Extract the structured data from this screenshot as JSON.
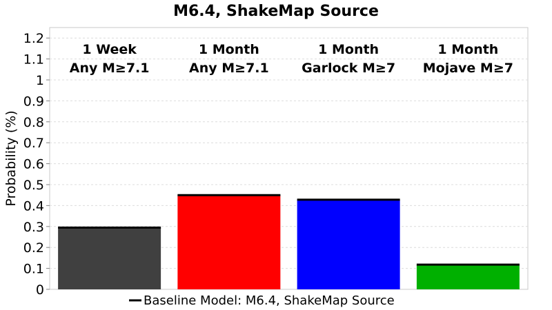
{
  "chart_data": {
    "type": "bar",
    "title": "M6.4, ShakeMap Source",
    "xlabel": "",
    "ylabel": "Probability (%)",
    "ylim": [
      0,
      1.25
    ],
    "yticks": [
      "0",
      "0.1",
      "0.2",
      "0.3",
      "0.4",
      "0.5",
      "0.6",
      "0.7",
      "0.8",
      "0.9",
      "1",
      "1.1",
      "1.2"
    ],
    "grid": true,
    "legend_position": "bottom",
    "categories": [
      {
        "line1": "1 Week",
        "line2": "Any M≥7.1"
      },
      {
        "line1": "1 Month",
        "line2": "Any M≥7.1"
      },
      {
        "line1": "1 Month",
        "line2": "Garlock M≥7"
      },
      {
        "line1": "1 Month",
        "line2": "Mojave M≥7"
      }
    ],
    "values": [
      0.295,
      0.45,
      0.428,
      0.118
    ],
    "colors": [
      "#404040",
      "#ff0000",
      "#0000ff",
      "#00b000"
    ],
    "baseline": {
      "name": "Baseline Model: M6.4, ShakeMap Source",
      "values": [
        0.295,
        0.45,
        0.428,
        0.118
      ],
      "color": "#000000"
    }
  }
}
